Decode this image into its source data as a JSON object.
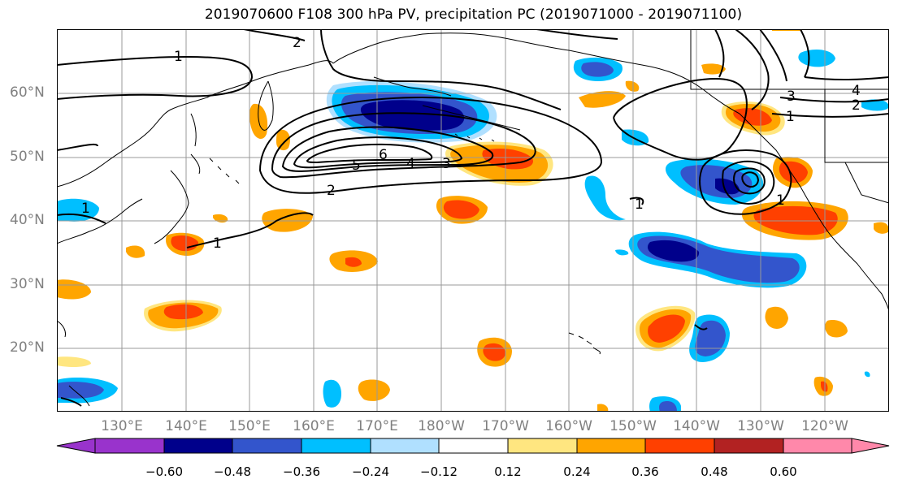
{
  "title": "2019070600 F108 300 hPa PV, precipitation PC (2019071000 - 2019071100)",
  "lat_labels": [
    "60°N",
    "50°N",
    "40°N",
    "30°N",
    "20°N"
  ],
  "lon_labels": [
    "130°E",
    "140°E",
    "150°E",
    "160°E",
    "170°E",
    "180°W",
    "170°W",
    "160°W",
    "150°W",
    "140°W",
    "130°W",
    "120°W"
  ],
  "colorbar": {
    "ticks": [
      "−0.60",
      "−0.48",
      "−0.36",
      "−0.24",
      "−0.12",
      "0.12",
      "0.24",
      "0.36",
      "0.48",
      "0.60"
    ],
    "colors": [
      "#9933cc",
      "#00008b",
      "#3355cc",
      "#00bfff",
      "#b0e0ff",
      "#ffffff",
      "#ffe680",
      "#ffa500",
      "#ff4000",
      "#b22222",
      "#ff88aa"
    ]
  },
  "contour_labels": [
    "1",
    "2",
    "1",
    "2",
    "3",
    "4",
    "5",
    "6",
    "1",
    "1",
    "2",
    "3",
    "4",
    "1",
    "1"
  ]
}
